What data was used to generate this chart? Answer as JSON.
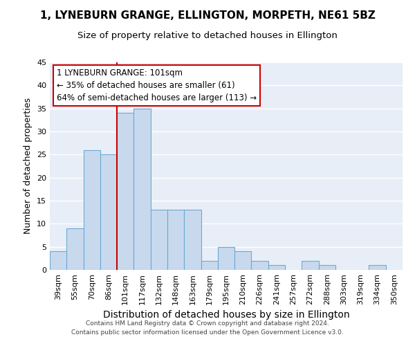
{
  "title_line1": "1, LYNEBURN GRANGE, ELLINGTON, MORPETH, NE61 5BZ",
  "title_line2": "Size of property relative to detached houses in Ellington",
  "xlabel": "Distribution of detached houses by size in Ellington",
  "ylabel": "Number of detached properties",
  "categories": [
    "39sqm",
    "55sqm",
    "70sqm",
    "86sqm",
    "101sqm",
    "117sqm",
    "132sqm",
    "148sqm",
    "163sqm",
    "179sqm",
    "195sqm",
    "210sqm",
    "226sqm",
    "241sqm",
    "257sqm",
    "272sqm",
    "288sqm",
    "303sqm",
    "319sqm",
    "334sqm",
    "350sqm"
  ],
  "values": [
    4,
    9,
    26,
    25,
    34,
    35,
    13,
    13,
    13,
    2,
    5,
    4,
    2,
    1,
    0,
    2,
    1,
    0,
    0,
    1,
    0
  ],
  "bar_color": "#c8d9ee",
  "bar_edge_color": "#6aaad4",
  "highlight_index": 4,
  "highlight_line_color": "#cc0000",
  "annotation_line1": "1 LYNEBURN GRANGE: 101sqm",
  "annotation_line2": "← 35% of detached houses are smaller (61)",
  "annotation_line3": "64% of semi-detached houses are larger (113) →",
  "annotation_box_color": "#ffffff",
  "annotation_box_edge": "#cc0000",
  "ylim": [
    0,
    45
  ],
  "yticks": [
    0,
    5,
    10,
    15,
    20,
    25,
    30,
    35,
    40,
    45
  ],
  "background_color": "#e8eef7",
  "grid_color": "#ffffff",
  "footer_line1": "Contains HM Land Registry data © Crown copyright and database right 2024.",
  "footer_line2": "Contains public sector information licensed under the Open Government Licence v3.0.",
  "title_fontsize": 11,
  "subtitle_fontsize": 9.5,
  "xlabel_fontsize": 10,
  "ylabel_fontsize": 9,
  "tick_fontsize": 8,
  "annotation_fontsize": 8.5,
  "footer_fontsize": 6.5
}
